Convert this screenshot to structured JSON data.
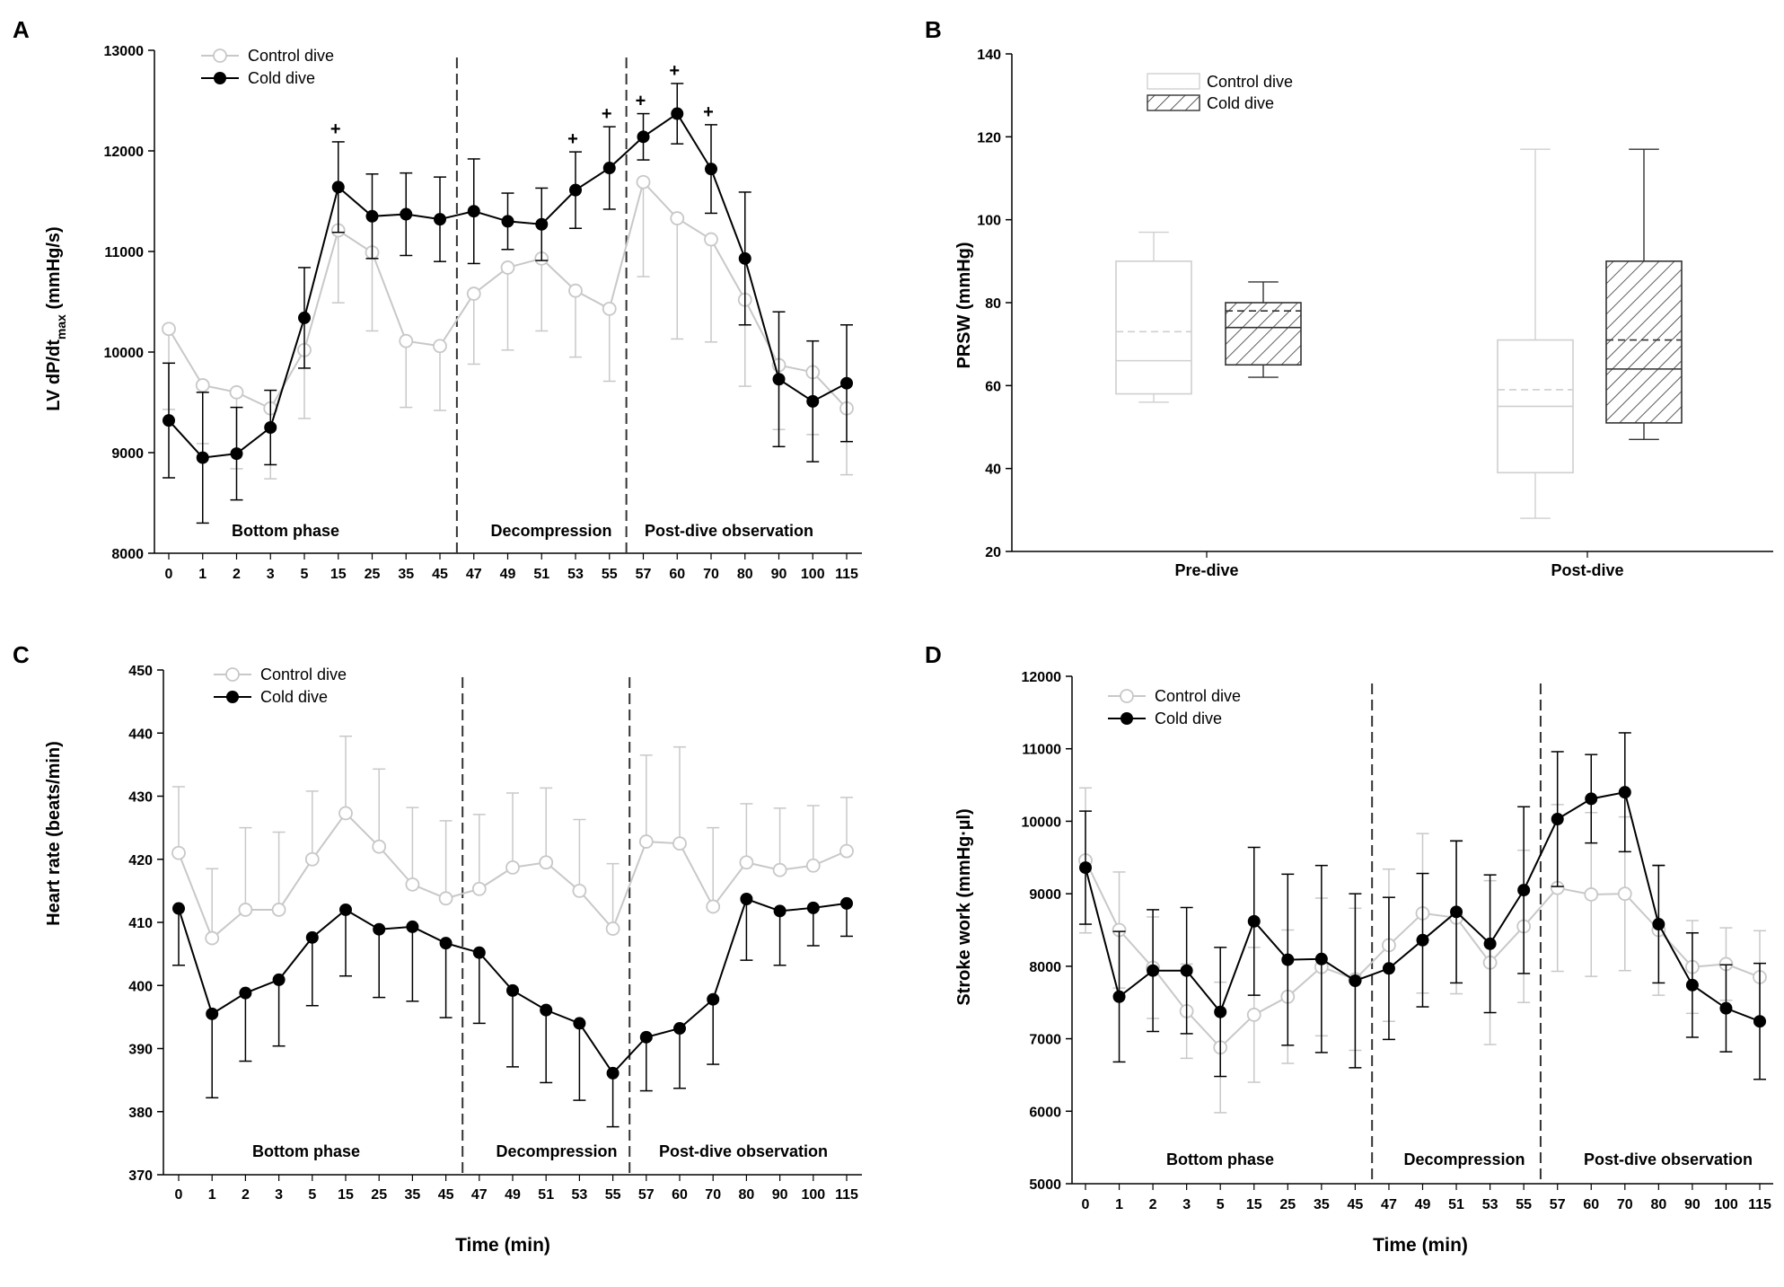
{
  "colors": {
    "control": "#c8c8c8",
    "cold": "#000000",
    "axis": "#000000",
    "divider": "#333333"
  },
  "x_label": "Time (min)",
  "chart_data": [
    {
      "id": "A",
      "panel_letter": "A",
      "type": "line",
      "title": "",
      "ylabel_main": "LV dP/dt",
      "ylabel_sub": "max",
      "ylabel_unit": "(mmHg/s)",
      "ylim": [
        8000,
        13000
      ],
      "yticks": [
        8000,
        9000,
        10000,
        11000,
        12000,
        13000
      ],
      "categories": [
        "0",
        "1",
        "2",
        "3",
        "5",
        "15",
        "25",
        "35",
        "45",
        "47",
        "49",
        "51",
        "53",
        "55",
        "57",
        "60",
        "70",
        "80",
        "90",
        "100",
        "115"
      ],
      "dividers_after_index": [
        8,
        13
      ],
      "phases": [
        "Bottom phase",
        "Decompression",
        "Post-dive observation"
      ],
      "legend": [
        "Control dive",
        "Cold dive"
      ],
      "significance_symbol": "+",
      "significant_indices": [
        5,
        12,
        13,
        14,
        15,
        16
      ],
      "series": [
        {
          "name": "Control dive",
          "values": [
            10230,
            9670,
            9600,
            9440,
            10020,
            11210,
            10990,
            10110,
            10060,
            10580,
            10840,
            10930,
            10610,
            10430,
            11690,
            11330,
            11120,
            10520,
            9870,
            9800,
            9440
          ],
          "errors": [
            800,
            580,
            760,
            700,
            680,
            720,
            780,
            660,
            640,
            700,
            820,
            720,
            660,
            720,
            940,
            1200,
            1020,
            860,
            640,
            620,
            660
          ],
          "error_dir": "down"
        },
        {
          "name": "Cold dive",
          "values": [
            9320,
            8950,
            8990,
            9250,
            10340,
            11640,
            11350,
            11370,
            11320,
            11400,
            11300,
            11270,
            11610,
            11830,
            12140,
            12370,
            11820,
            10930,
            9730,
            9510,
            9690
          ],
          "errors": [
            570,
            650,
            460,
            370,
            500,
            450,
            420,
            410,
            420,
            520,
            280,
            360,
            380,
            410,
            230,
            300,
            440,
            660,
            670,
            600,
            580
          ],
          "error_dir": "both"
        }
      ]
    },
    {
      "id": "B",
      "panel_letter": "B",
      "type": "box",
      "ylabel": "PRSW (mmHg)",
      "ylim": [
        20,
        140
      ],
      "yticks": [
        20,
        40,
        60,
        80,
        100,
        120,
        140
      ],
      "groups": [
        "Pre-dive",
        "Post-dive"
      ],
      "legend": [
        "Control  dive",
        "Cold dive"
      ],
      "boxes": [
        {
          "group": "Pre-dive",
          "series": "Control dive",
          "min": 56,
          "q1": 58,
          "median": 66,
          "mean": 73,
          "q3": 90,
          "max": 97
        },
        {
          "group": "Pre-dive",
          "series": "Cold dive",
          "min": 62,
          "q1": 65,
          "median": 74,
          "mean": 78,
          "q3": 80,
          "max": 85
        },
        {
          "group": "Post-dive",
          "series": "Control dive",
          "min": 28,
          "q1": 39,
          "median": 55,
          "mean": 59,
          "q3": 71,
          "max": 117
        },
        {
          "group": "Post-dive",
          "series": "Cold dive",
          "min": 47,
          "q1": 51,
          "median": 64,
          "mean": 71,
          "q3": 90,
          "max": 117
        }
      ]
    },
    {
      "id": "C",
      "panel_letter": "C",
      "type": "line",
      "title": "",
      "ylabel": "Heart rate (beats/min)",
      "ylim": [
        370,
        450
      ],
      "yticks": [
        370,
        380,
        390,
        400,
        410,
        420,
        430,
        440,
        450
      ],
      "categories": [
        "0",
        "1",
        "2",
        "3",
        "5",
        "15",
        "25",
        "35",
        "45",
        "47",
        "49",
        "51",
        "53",
        "55",
        "57",
        "60",
        "70",
        "80",
        "90",
        "100",
        "115"
      ],
      "dividers_after_index": [
        8,
        13
      ],
      "phases": [
        "Bottom phase",
        "Decompression",
        "Post-dive observation"
      ],
      "legend": [
        "Control dive",
        "Cold dive"
      ],
      "series": [
        {
          "name": "Control dive",
          "values": [
            421,
            407.5,
            412,
            412,
            420,
            427.3,
            422,
            416,
            413.8,
            415.3,
            418.7,
            419.5,
            415,
            409,
            422.8,
            422.5,
            412.5,
            419.5,
            418.3,
            419,
            421.3
          ],
          "errors": [
            10.5,
            11,
            13,
            12.3,
            10.8,
            12.2,
            12.3,
            12.2,
            12.3,
            11.8,
            11.8,
            11.8,
            11.3,
            10.3,
            13.7,
            15.3,
            12.5,
            9.3,
            9.8,
            9.5,
            8.5
          ],
          "error_dir": "up"
        },
        {
          "name": "Cold dive",
          "values": [
            412.2,
            395.5,
            398.8,
            400.9,
            407.6,
            412,
            408.9,
            409.3,
            406.7,
            405.2,
            399.2,
            396.1,
            394,
            386.1,
            391.8,
            393.2,
            397.8,
            413.7,
            411.8,
            412.3,
            413
          ],
          "errors": [
            9,
            13.3,
            10.8,
            10.5,
            10.8,
            10.5,
            10.8,
            11.8,
            11.8,
            11.2,
            12.1,
            11.5,
            12.2,
            8.5,
            8.5,
            9.5,
            10.3,
            9.7,
            8.6,
            6,
            5.2
          ],
          "error_dir": "down"
        }
      ]
    },
    {
      "id": "D",
      "panel_letter": "D",
      "type": "line",
      "title": "",
      "ylabel": "Stroke work (mmHg·µl)",
      "ylim": [
        5000,
        12000
      ],
      "yticks": [
        5000,
        6000,
        7000,
        8000,
        9000,
        10000,
        11000,
        12000
      ],
      "categories": [
        "0",
        "1",
        "2",
        "3",
        "5",
        "15",
        "25",
        "35",
        "45",
        "47",
        "49",
        "51",
        "53",
        "55",
        "57",
        "60",
        "70",
        "80",
        "90",
        "100",
        "115"
      ],
      "dividers_after_index": [
        8,
        13
      ],
      "phases": [
        "Bottom phase",
        "Decompression",
        "Post-dive observation"
      ],
      "legend": [
        "Control  dive",
        "Cold dive"
      ],
      "series": [
        {
          "name": "Control dive",
          "values": [
            9460,
            8500,
            7980,
            7380,
            6880,
            7330,
            7580,
            7990,
            7820,
            8290,
            8730,
            8670,
            8050,
            8550,
            9080,
            8990,
            9000,
            8500,
            7990,
            8030,
            7850
          ],
          "errors": [
            1000,
            800,
            700,
            650,
            900,
            930,
            920,
            950,
            980,
            1050,
            1100,
            1050,
            1130,
            1050,
            1150,
            1130,
            1060,
            900,
            640,
            500,
            640
          ],
          "error_dir": "both"
        },
        {
          "name": "Cold dive",
          "values": [
            9360,
            7580,
            7940,
            7940,
            7370,
            8620,
            8090,
            8100,
            7800,
            7970,
            8360,
            8750,
            8310,
            9050,
            10030,
            10310,
            10400,
            8580,
            7740,
            7420,
            7240
          ],
          "errors": [
            780,
            900,
            840,
            870,
            890,
            1020,
            1180,
            1290,
            1200,
            980,
            920,
            980,
            950,
            1150,
            930,
            610,
            820,
            810,
            720,
            600,
            800
          ],
          "error_dir": "both"
        }
      ]
    }
  ]
}
